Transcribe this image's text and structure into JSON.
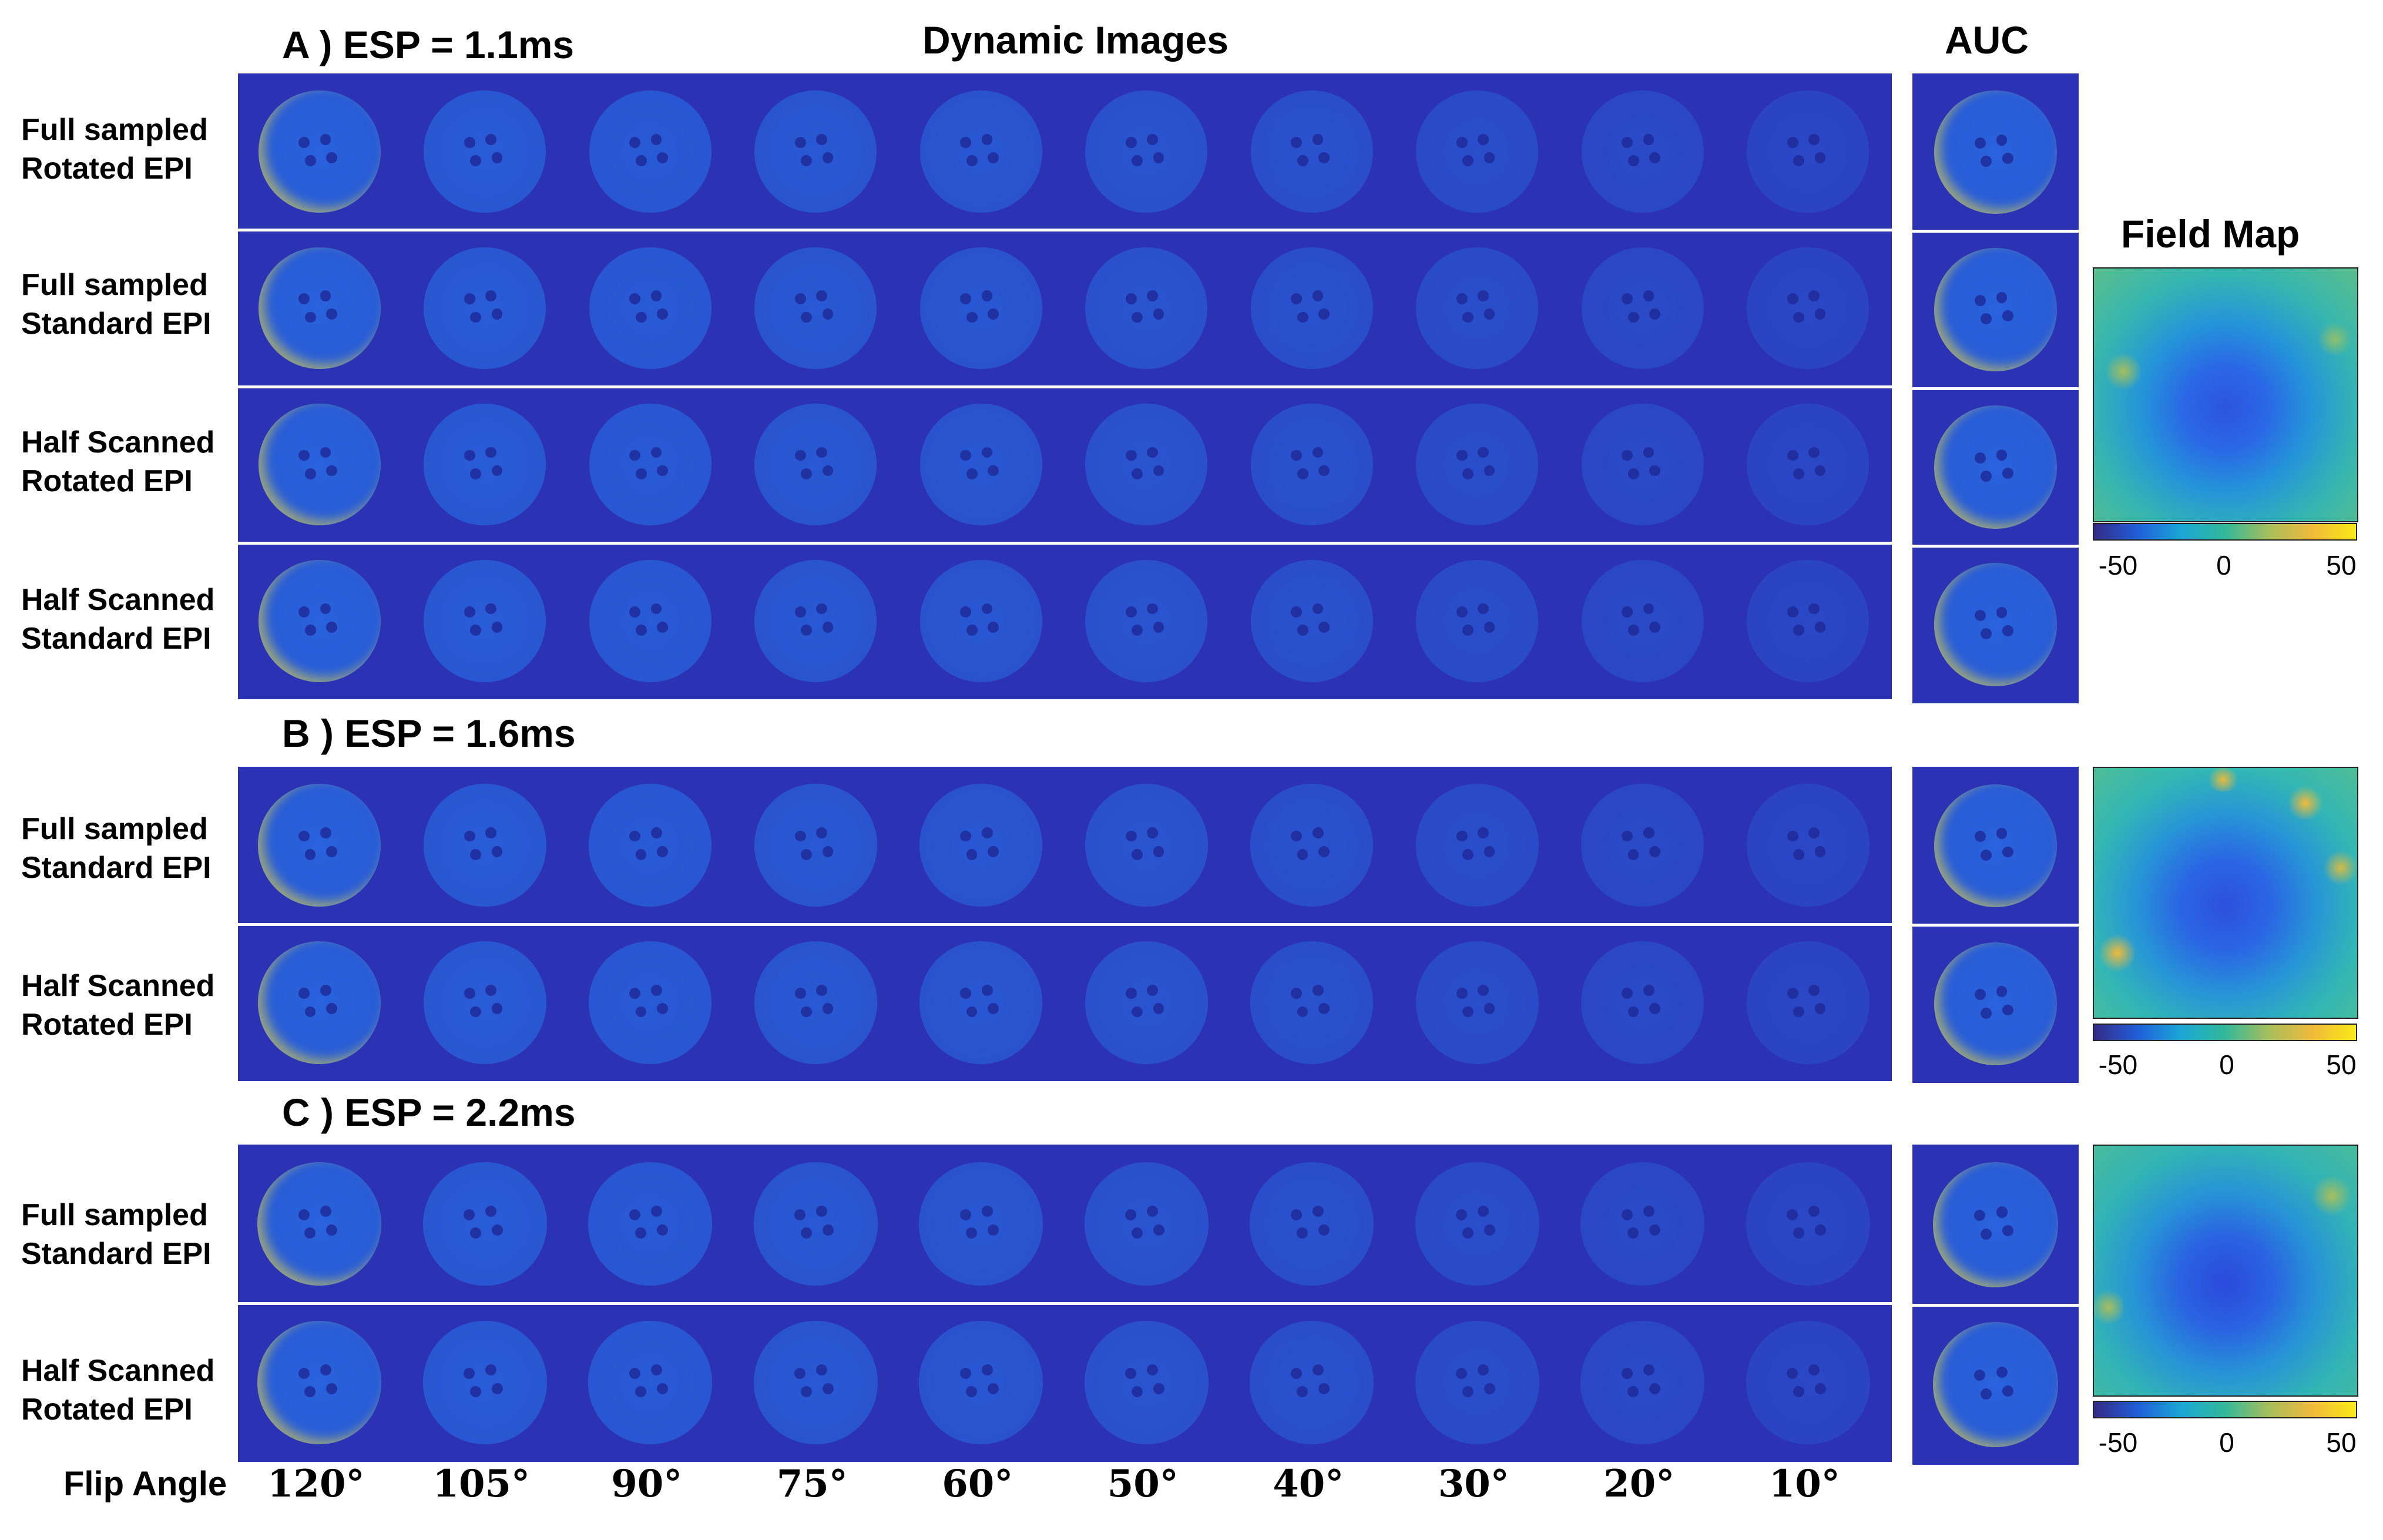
{
  "headers": {
    "dynamic_images": "Dynamic Images",
    "auc": "AUC",
    "field_map": "Field Map",
    "flip_angle": "Flip Angle"
  },
  "sections": [
    {
      "title": "A ) ESP = 1.1ms",
      "rows": [
        {
          "line1": "Full sampled",
          "line2": "Rotated EPI"
        },
        {
          "line1": "Full sampled",
          "line2": "Standard EPI"
        },
        {
          "line1": "Half Scanned",
          "line2": "Rotated EPI"
        },
        {
          "line1": "Half Scanned",
          "line2": "Standard EPI"
        }
      ]
    },
    {
      "title": "B ) ESP = 1.6ms",
      "rows": [
        {
          "line1": "Full sampled",
          "line2": "Standard EPI"
        },
        {
          "line1": "Half Scanned",
          "line2": "Rotated EPI"
        }
      ]
    },
    {
      "title": "C ) ESP = 2.2ms",
      "rows": [
        {
          "line1": "Full sampled",
          "line2": "Standard EPI"
        },
        {
          "line1": "Half Scanned",
          "line2": "Rotated EPI"
        }
      ]
    }
  ],
  "colorbar_ticks": [
    "-50",
    "0",
    "50"
  ],
  "flip_angles": [
    "120°",
    "105°",
    "90°",
    "75°",
    "60°",
    "50°",
    "40°",
    "30°",
    "20°",
    "10°"
  ],
  "colormap_colors": [
    "#352a87",
    "#1f5fd8",
    "#1ba6d6",
    "#32b99a",
    "#a6be5b",
    "#f0ba3c",
    "#f9e916"
  ]
}
